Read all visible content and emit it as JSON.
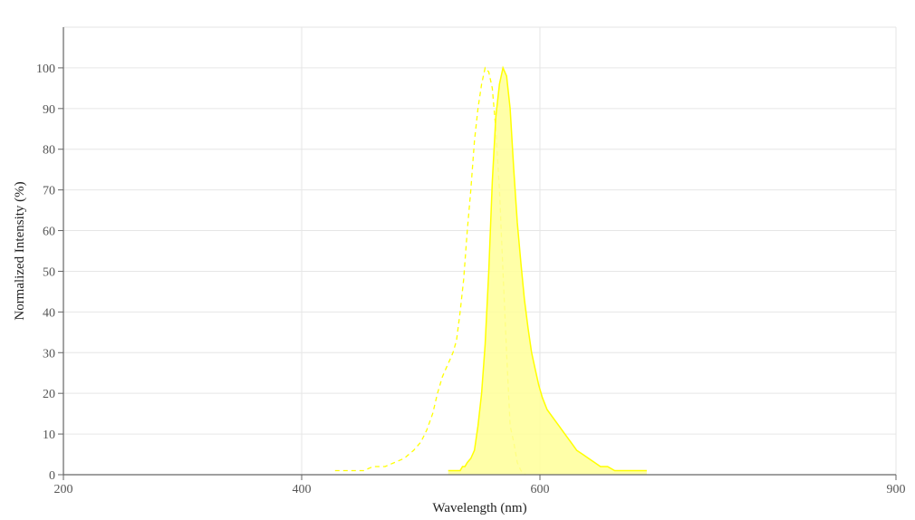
{
  "chart_data": {
    "type": "area",
    "xlabel": "Wavelength (nm)",
    "ylabel": "Normalized Intensity (%)",
    "xlim": [
      200,
      900
    ],
    "ylim": [
      0,
      110
    ],
    "x_ticks": [
      200,
      400,
      600,
      900
    ],
    "y_ticks": [
      0,
      10,
      20,
      30,
      40,
      50,
      60,
      70,
      80,
      90,
      100
    ],
    "grid": true,
    "colors": {
      "series": "#ffff00",
      "fill": "#ffff99",
      "grid": "#e6e6e6",
      "axis": "#666666"
    },
    "series": [
      {
        "style": "dashed",
        "x": [
          428,
          452,
          460,
          470,
          478,
          486,
          494,
          500,
          505,
          510,
          514,
          518,
          521,
          524,
          527,
          530,
          533,
          536,
          539,
          542,
          545,
          548,
          551,
          554,
          557,
          560,
          563,
          566,
          569,
          572,
          575,
          578,
          581,
          584,
          588
        ],
        "y": [
          1,
          1,
          2,
          2,
          3,
          4,
          6,
          8,
          11,
          15,
          20,
          24,
          26,
          28,
          30,
          33,
          40,
          48,
          60,
          70,
          82,
          90,
          96,
          100,
          99,
          95,
          85,
          70,
          50,
          30,
          12,
          8,
          3,
          1,
          0
        ]
      },
      {
        "style": "solid-filled",
        "x": [
          523,
          533,
          535,
          537,
          539,
          542,
          545,
          548,
          551,
          554,
          557,
          560,
          563,
          566,
          569,
          572,
          575,
          578,
          581,
          584,
          587,
          590,
          593,
          596,
          599,
          602,
          606,
          611,
          616,
          621,
          626,
          631,
          636,
          641,
          646,
          651,
          657,
          663,
          670,
          680,
          690
        ],
        "y": [
          1,
          1,
          2,
          2,
          3,
          4,
          6,
          12,
          20,
          32,
          50,
          72,
          88,
          96,
          100,
          98,
          90,
          75,
          62,
          52,
          43,
          36,
          30,
          26,
          22,
          19,
          16,
          14,
          12,
          10,
          8,
          6,
          5,
          4,
          3,
          2,
          2,
          1,
          1,
          1,
          1
        ]
      }
    ]
  }
}
